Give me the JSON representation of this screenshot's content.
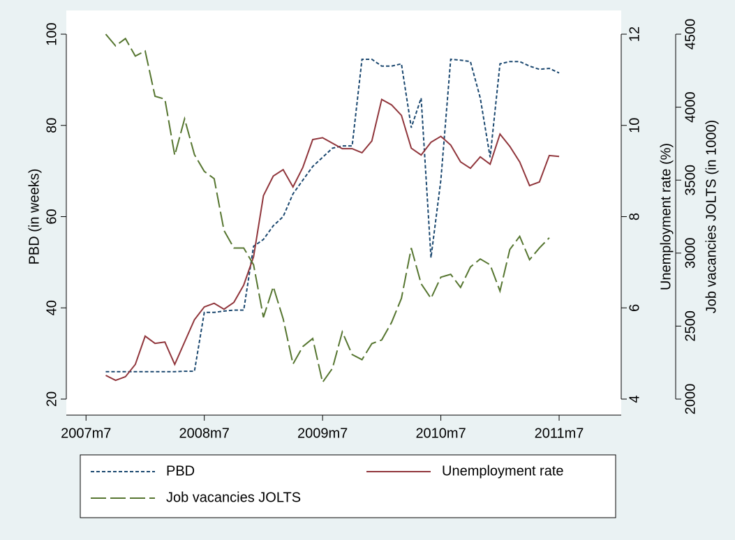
{
  "chart_data": {
    "type": "line",
    "x": [
      "2007m9",
      "2007m10",
      "2007m11",
      "2007m12",
      "2008m1",
      "2008m2",
      "2008m3",
      "2008m4",
      "2008m5",
      "2008m6",
      "2008m7",
      "2008m8",
      "2008m9",
      "2008m10",
      "2008m11",
      "2008m12",
      "2009m1",
      "2009m2",
      "2009m3",
      "2009m4",
      "2009m5",
      "2009m6",
      "2009m7",
      "2009m8",
      "2009m9",
      "2009m10",
      "2009m11",
      "2009m12",
      "2010m1",
      "2010m2",
      "2010m3",
      "2010m4",
      "2010m5",
      "2010m6",
      "2010m7",
      "2010m8",
      "2010m9",
      "2010m10",
      "2010m11",
      "2010m12",
      "2011m1",
      "2011m2",
      "2011m3",
      "2011m4",
      "2011m5",
      "2011m6",
      "2011m7"
    ],
    "xlim": [
      "2007m5",
      "2012m1"
    ],
    "xticks": [
      "2007m7",
      "2008m7",
      "2009m7",
      "2010m7",
      "2011m7"
    ],
    "ylabel": "PBD (in weeks)",
    "ylim": [
      20,
      100
    ],
    "yticks": [
      20,
      40,
      60,
      80,
      100
    ],
    "y2label": "Unemployment rate (%)",
    "y2lim": [
      4,
      12
    ],
    "y2ticks": [
      4,
      6,
      8,
      10,
      12
    ],
    "y3label": "Job vacancies JOLTS (in 1000)",
    "y3lim": [
      2000,
      4500
    ],
    "y3ticks": [
      2000,
      2500,
      3000,
      3500,
      4000,
      4500
    ],
    "series": [
      {
        "name": "PBD",
        "color": "#1a476f",
        "dash": "5,3",
        "axis": "y",
        "values": [
          26,
          26,
          26,
          26,
          26,
          26,
          26,
          26,
          26.1,
          26.1,
          39,
          39,
          39.3,
          39.5,
          39.5,
          53.5,
          55,
          58,
          60,
          65,
          68,
          71,
          73,
          75,
          75.5,
          75.5,
          94.5,
          94.5,
          93,
          93,
          93.5,
          79.5,
          86,
          51,
          68,
          94.5,
          94.3,
          94,
          86,
          73,
          93.5,
          94,
          94,
          93,
          92.3,
          92.5,
          91.5
        ]
      },
      {
        "name": "Unemployment rate",
        "color": "#90353b",
        "dash": "none",
        "axis": "y2",
        "values": [
          4.52,
          4.41,
          4.49,
          4.76,
          5.38,
          5.22,
          5.25,
          4.76,
          5.25,
          5.74,
          6.02,
          6.1,
          5.97,
          6.12,
          6.5,
          7.12,
          8.46,
          8.89,
          9.03,
          8.65,
          9.08,
          9.69,
          9.73,
          9.61,
          9.49,
          9.49,
          9.4,
          9.66,
          10.57,
          10.45,
          10.22,
          9.5,
          9.35,
          9.63,
          9.76,
          9.57,
          9.2,
          9.06,
          9.31,
          9.15,
          9.81,
          9.54,
          9.2,
          8.68,
          8.76,
          9.34,
          9.32
        ]
      },
      {
        "name": "Job vacancies JOLTS",
        "color": "#55752f",
        "dash": "22,6",
        "axis": "y3",
        "values": [
          4500,
          4420,
          4470,
          4350,
          4385,
          4075,
          4055,
          3670,
          3920,
          3675,
          3560,
          3510,
          3155,
          3035,
          3035,
          2920,
          2560,
          2770,
          2550,
          2240,
          2360,
          2415,
          2115,
          2210,
          2460,
          2305,
          2270,
          2380,
          2405,
          2525,
          2690,
          3035,
          2790,
          2690,
          2835,
          2855,
          2765,
          2905,
          2960,
          2920,
          2740,
          3025,
          3115,
          2955,
          3035,
          3105,
          null
        ]
      }
    ]
  }
}
